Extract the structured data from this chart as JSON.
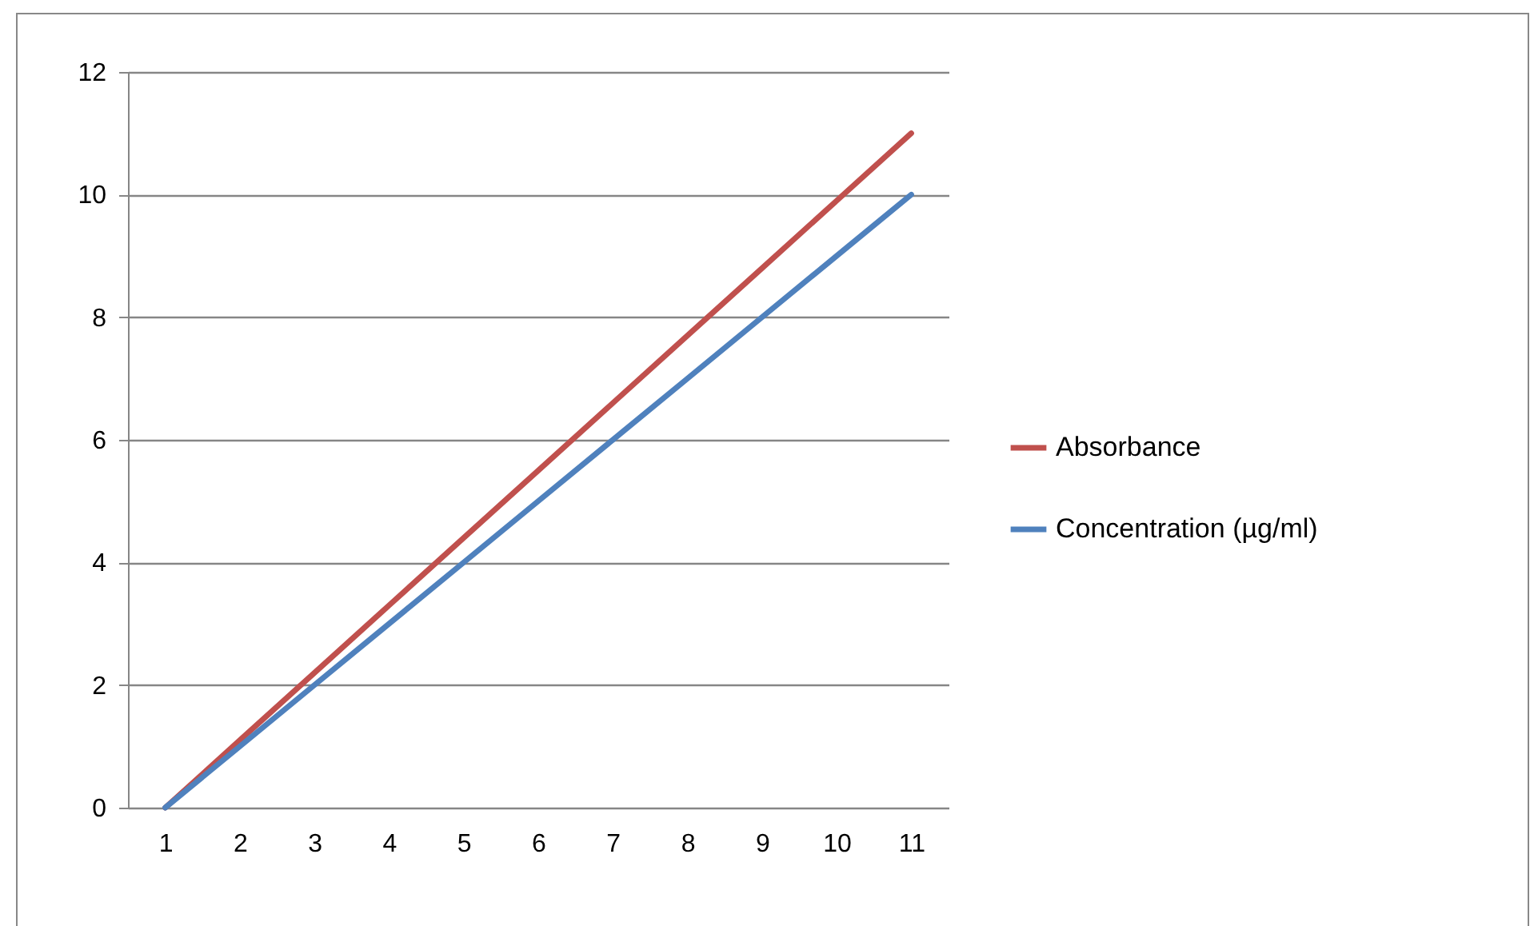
{
  "chart_data": {
    "type": "line",
    "categories": [
      "1",
      "2",
      "3",
      "4",
      "5",
      "6",
      "7",
      "8",
      "9",
      "10",
      "11"
    ],
    "series": [
      {
        "name": "Absorbance",
        "color": "#c0504d",
        "values": [
          0,
          1.1,
          2.2,
          3.3,
          4.4,
          5.5,
          6.6,
          7.7,
          8.8,
          9.9,
          11
        ]
      },
      {
        "name": "Concentration (µg/ml)",
        "color": "#4f81bd",
        "values": [
          0,
          1,
          2,
          3,
          4,
          5,
          6,
          7,
          8,
          9,
          10
        ]
      }
    ],
    "ylim": [
      0,
      12
    ],
    "yticks": [
      0,
      2,
      4,
      6,
      8,
      10,
      12
    ],
    "grid": "y",
    "legend": "right",
    "marker": "none",
    "line_style": "solid"
  }
}
